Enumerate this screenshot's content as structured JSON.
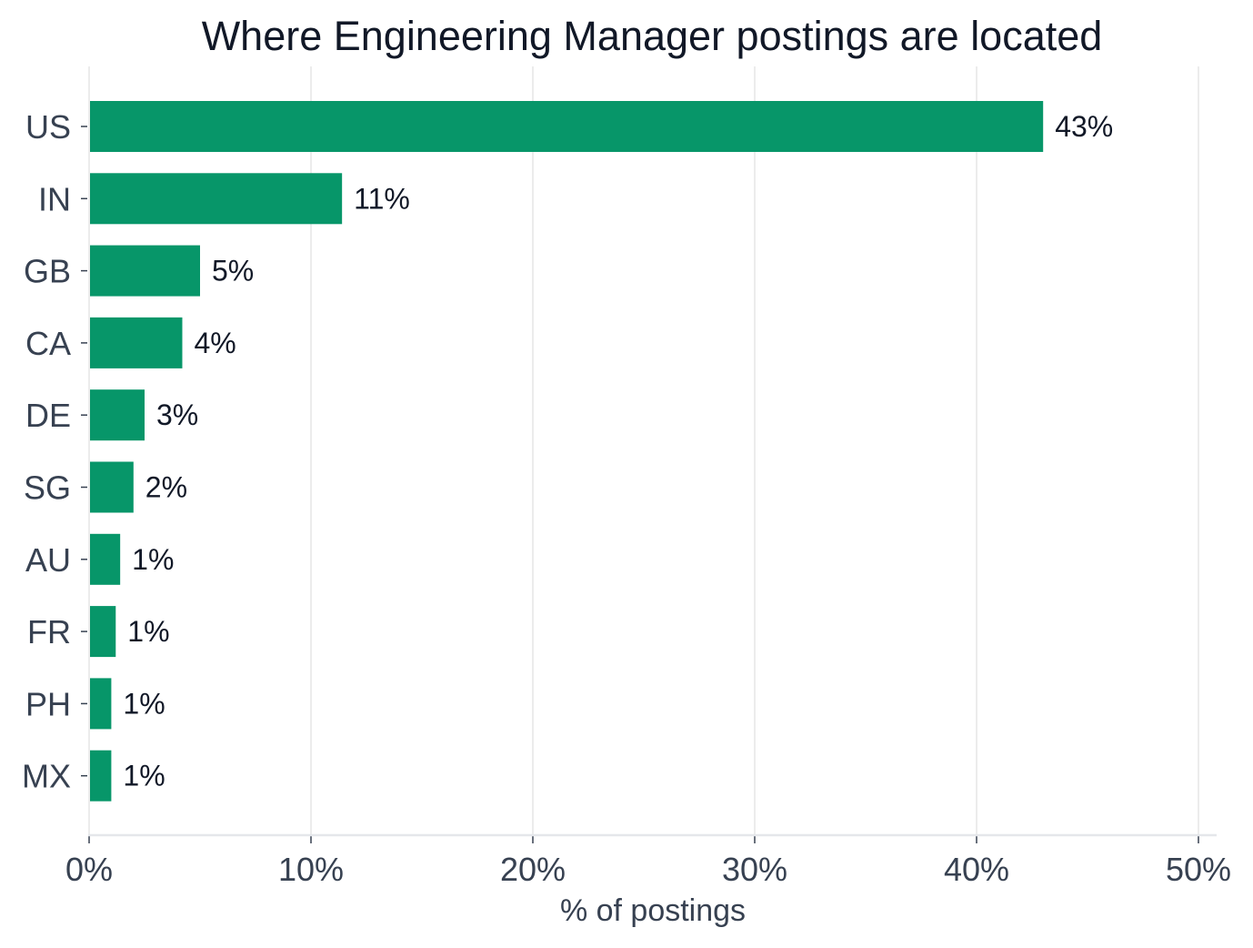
{
  "chart_data": {
    "type": "bar",
    "orientation": "horizontal",
    "title": "Where Engineering Manager postings are located",
    "xlabel": "% of postings",
    "ylabel": "",
    "categories": [
      "US",
      "IN",
      "GB",
      "CA",
      "DE",
      "SG",
      "AU",
      "FR",
      "PH",
      "MX"
    ],
    "values": [
      43,
      11.4,
      5,
      4.2,
      2.5,
      2,
      1.4,
      1.2,
      1,
      1
    ],
    "data_labels": [
      "43%",
      "11%",
      "5%",
      "4%",
      "3%",
      "2%",
      "1%",
      "1%",
      "1%",
      "1%"
    ],
    "xlim": [
      0,
      50
    ],
    "xticks": [
      "0%",
      "10%",
      "20%",
      "30%",
      "40%",
      "50%"
    ],
    "grid": "vertical",
    "bar_color": "#079669",
    "grid_color": "#ececec",
    "axis_color": "#e5e7eb",
    "legend": "none"
  }
}
